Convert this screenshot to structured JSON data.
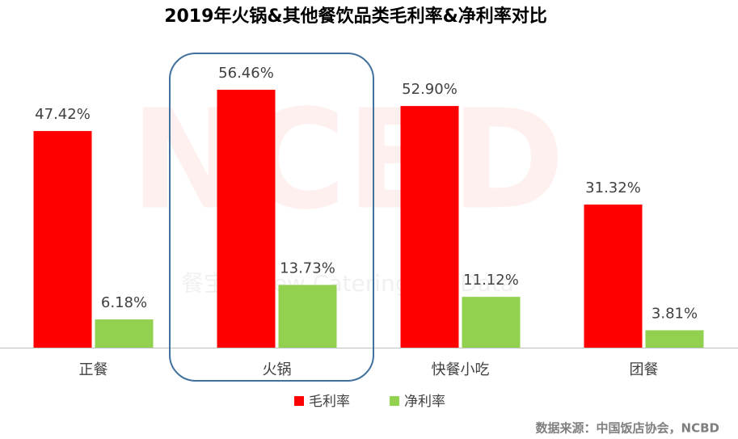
{
  "chart_data": {
    "type": "bar",
    "title": "2019年火锅&其他餐饮品类毛利率&净利率对比",
    "categories": [
      "正餐",
      "火锅",
      "快餐小吃",
      "团餐"
    ],
    "series": [
      {
        "name": "毛利率",
        "color": "#ff0000",
        "values": [
          47.42,
          56.46,
          52.9,
          31.32
        ],
        "value_labels": [
          "47.42%",
          "56.46%",
          "52.90%",
          "31.32%"
        ]
      },
      {
        "name": "净利率",
        "color": "#92d050",
        "values": [
          6.18,
          13.73,
          11.12,
          3.81
        ],
        "value_labels": [
          "6.18%",
          "13.73%",
          "11.12%",
          "3.81%"
        ]
      }
    ],
    "legend": "bottom",
    "watermark": "NCBD",
    "watermark_subtitle": "餐宝典 New Catering Big Data",
    "source": "数据来源：中国饭店协会，NCBD"
  }
}
